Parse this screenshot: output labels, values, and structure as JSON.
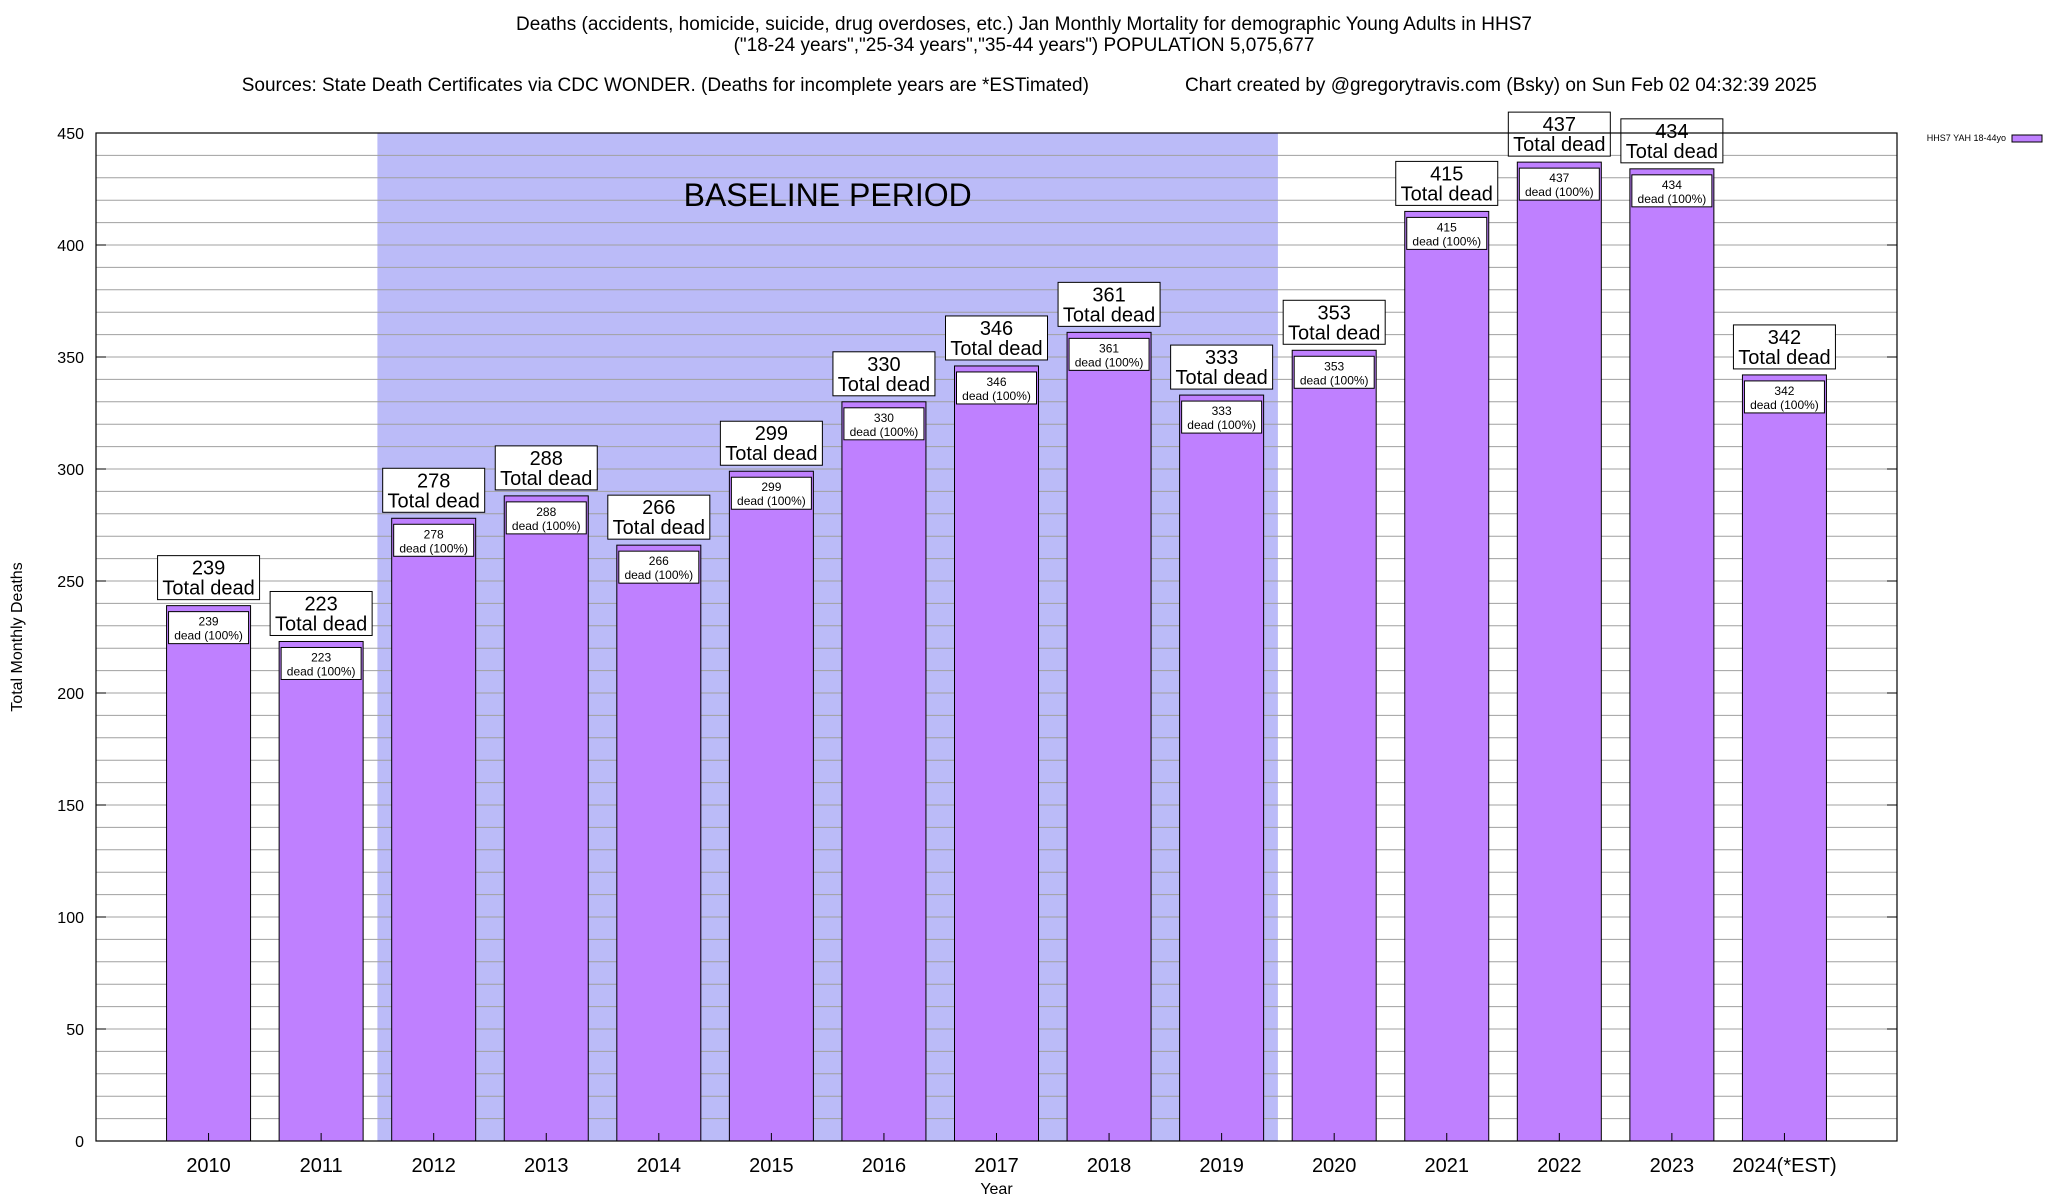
{
  "title_lines": [
    "Deaths (accidents, homicide, suicide, drug overdoses, etc.) Jan Monthly Mortality for demographic Young Adults in HHS7",
    "(\"18-24 years\",\"25-34 years\",\"35-44 years\") POPULATION 5,075,677"
  ],
  "source_text": "Sources: State Death Certificates via CDC WONDER. (Deaths for incomplete years are *ESTimated)",
  "credit_text": "Chart created by @gregorytravis.com (Bsky) on Sun Feb 02 04:32:39 2025",
  "chart_data": {
    "type": "bar",
    "xlabel": "Year",
    "ylabel": "Total Monthly Deaths",
    "ylim": [
      0,
      450
    ],
    "y_ticks": [
      0,
      50,
      100,
      150,
      200,
      250,
      300,
      350,
      400,
      450
    ],
    "grid": true,
    "legend_position": "top-right",
    "categories": [
      "2010",
      "2011",
      "2012",
      "2013",
      "2014",
      "2015",
      "2016",
      "2017",
      "2018",
      "2019",
      "2020",
      "2021",
      "2022",
      "2023",
      "2024(*EST)"
    ],
    "series": [
      {
        "name": "HHS7 YAH 18-44yo",
        "values": [
          239,
          223,
          278,
          288,
          266,
          299,
          330,
          346,
          361,
          333,
          353,
          415,
          437,
          434,
          342
        ],
        "color": "#bf80ff"
      }
    ],
    "total_label_suffix": "Total dead",
    "inner_label_suffix": "dead (100%)",
    "baseline_period": {
      "label": "BASELINE PERIOD",
      "start_category": "2012",
      "end_category": "2019",
      "color": "#bbbbf8"
    }
  }
}
